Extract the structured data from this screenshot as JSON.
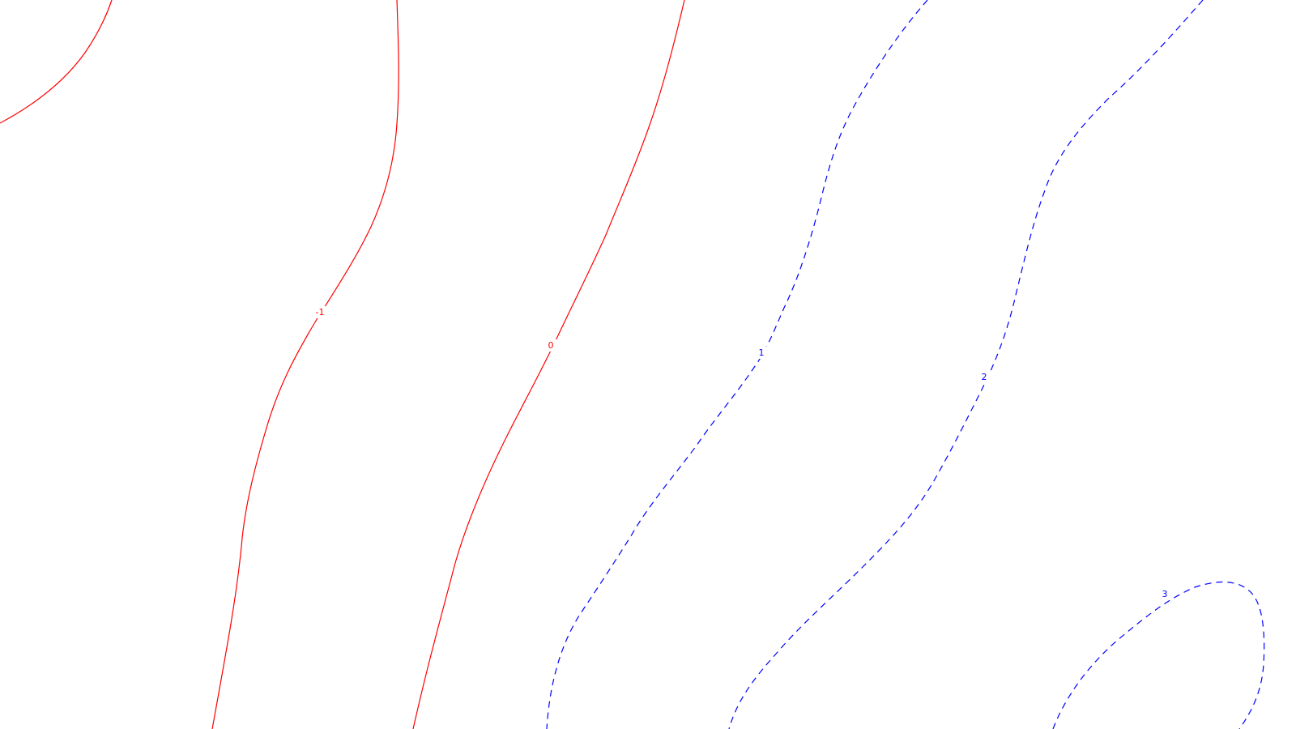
{
  "chart_data": {
    "type": "contour",
    "grid": false,
    "colors": {
      "negative_and_zero": "#ff0000",
      "positive": "#0000ff"
    },
    "line_styles": {
      "negative_and_zero": "solid",
      "positive": "dashed"
    },
    "levels": [
      {
        "value": -2,
        "label": "",
        "color": "#ff0000",
        "style": "solid"
      },
      {
        "value": -1,
        "label": "-1",
        "color": "#ff0000",
        "style": "solid"
      },
      {
        "value": 0,
        "label": "0",
        "color": "#ff0000",
        "style": "solid"
      },
      {
        "value": 1,
        "label": "1",
        "color": "#0000ff",
        "style": "dashed"
      },
      {
        "value": 2,
        "label": "2",
        "color": "#0000ff",
        "style": "dashed"
      },
      {
        "value": 3,
        "label": "3",
        "color": "#0000ff",
        "style": "dashed"
      }
    ]
  }
}
